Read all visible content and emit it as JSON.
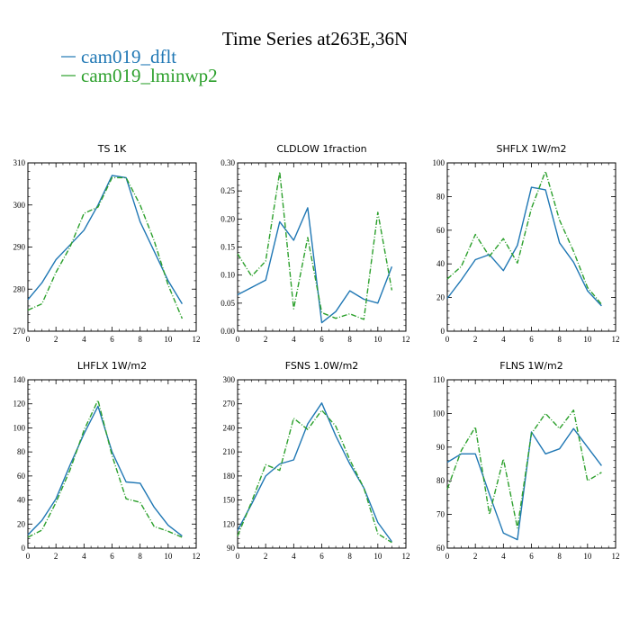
{
  "title": "Time Series at263E,36N",
  "legend": [
    {
      "label": "cam019_dflt",
      "color": "#1f77b4"
    },
    {
      "label": "cam019_lminwp2",
      "color": "#2ca02c"
    }
  ],
  "chart_data": [
    {
      "type": "line",
      "title": "TS  1K",
      "x": [
        0,
        1,
        2,
        3,
        4,
        5,
        6,
        7,
        8,
        9,
        10,
        11
      ],
      "xlim": [
        0,
        12
      ],
      "xticks": [
        0,
        2,
        4,
        6,
        8,
        10,
        12
      ],
      "ylim": [
        270,
        310
      ],
      "yticks": [
        270,
        280,
        290,
        300,
        310
      ],
      "series": [
        {
          "name": "cam019_dflt",
          "values": [
            277.5,
            281.5,
            287,
            290.5,
            294,
            300,
            307,
            306.5,
            296,
            289,
            282,
            276.5
          ]
        },
        {
          "name": "cam019_lminwp2",
          "values": [
            275,
            276.5,
            284,
            290,
            298,
            299.5,
            306.5,
            306.5,
            300,
            291.5,
            281,
            273
          ]
        }
      ]
    },
    {
      "type": "line",
      "title": "CLDLOW  1fraction",
      "x": [
        0,
        1,
        2,
        3,
        4,
        5,
        6,
        7,
        8,
        9,
        10,
        11
      ],
      "xlim": [
        0,
        12
      ],
      "xticks": [
        0,
        2,
        4,
        6,
        8,
        10,
        12
      ],
      "ylim": [
        0,
        0.3
      ],
      "yticks": [
        "0.00",
        "0.05",
        "0.10",
        "0.15",
        "0.20",
        "0.25",
        "0.30"
      ],
      "series": [
        {
          "name": "cam019_dflt",
          "values": [
            0.065,
            0.078,
            0.091,
            0.195,
            0.162,
            0.22,
            0.015,
            0.035,
            0.072,
            0.057,
            0.05,
            0.115
          ]
        },
        {
          "name": "cam019_lminwp2",
          "values": [
            0.138,
            0.098,
            0.125,
            0.284,
            0.04,
            0.167,
            0.033,
            0.023,
            0.031,
            0.021,
            0.212,
            0.073
          ]
        }
      ]
    },
    {
      "type": "line",
      "title": "SHFLX  1W/m2",
      "x": [
        0,
        1,
        2,
        3,
        4,
        5,
        6,
        7,
        8,
        9,
        10,
        11
      ],
      "xlim": [
        0,
        12
      ],
      "xticks": [
        0,
        2,
        4,
        6,
        8,
        10,
        12
      ],
      "ylim": [
        0,
        100
      ],
      "yticks": [
        0,
        20,
        40,
        60,
        80,
        100
      ],
      "series": [
        {
          "name": "cam019_dflt",
          "values": [
            19.5,
            30.5,
            42.5,
            45.5,
            36,
            51,
            85.5,
            84,
            52.5,
            41,
            24,
            15
          ]
        },
        {
          "name": "cam019_lminwp2",
          "values": [
            31,
            38.5,
            57.5,
            44.5,
            55,
            40.5,
            73,
            95,
            66,
            47.5,
            26,
            16
          ]
        }
      ]
    },
    {
      "type": "line",
      "title": "LHFLX  1W/m2",
      "x": [
        0,
        1,
        2,
        3,
        4,
        5,
        6,
        7,
        8,
        9,
        10,
        11
      ],
      "xlim": [
        0,
        12
      ],
      "xticks": [
        0,
        2,
        4,
        6,
        8,
        10,
        12
      ],
      "ylim": [
        0,
        140
      ],
      "yticks": [
        0,
        20,
        40,
        60,
        80,
        100,
        120,
        140
      ],
      "series": [
        {
          "name": "cam019_dflt",
          "values": [
            11,
            23,
            41,
            69,
            95,
            118,
            80,
            55,
            54,
            34,
            19,
            10
          ]
        },
        {
          "name": "cam019_lminwp2",
          "values": [
            9,
            15,
            38,
            65,
            98,
            123,
            77,
            41,
            38,
            18,
            14,
            9
          ]
        }
      ]
    },
    {
      "type": "line",
      "title": "FSNS  1.0W/m2",
      "x": [
        0,
        1,
        2,
        3,
        4,
        5,
        6,
        7,
        8,
        9,
        10,
        11
      ],
      "xlim": [
        0,
        12
      ],
      "xticks": [
        0,
        2,
        4,
        6,
        8,
        10,
        12
      ],
      "ylim": [
        90,
        300
      ],
      "yticks": [
        90,
        120,
        150,
        180,
        210,
        240,
        270,
        300
      ],
      "series": [
        {
          "name": "cam019_dflt",
          "values": [
            112,
            145,
            180,
            195,
            200,
            245,
            271,
            230,
            195,
            165,
            122,
            98
          ]
        },
        {
          "name": "cam019_lminwp2",
          "values": [
            105,
            148,
            194,
            187,
            252,
            238,
            262,
            242,
            200,
            165,
            108,
            97
          ]
        }
      ]
    },
    {
      "type": "line",
      "title": "FLNS  1W/m2",
      "x": [
        0,
        1,
        2,
        3,
        4,
        5,
        6,
        7,
        8,
        9,
        10,
        11
      ],
      "xlim": [
        0,
        12
      ],
      "xticks": [
        0,
        2,
        4,
        6,
        8,
        10,
        12
      ],
      "ylim": [
        60,
        110
      ],
      "yticks": [
        60,
        70,
        80,
        90,
        100,
        110
      ],
      "series": [
        {
          "name": "cam019_dflt",
          "values": [
            85.5,
            88,
            88,
            76,
            64.5,
            62.5,
            94.5,
            88,
            89.5,
            95.5,
            90,
            84.5
          ]
        },
        {
          "name": "cam019_lminwp2",
          "values": [
            77.5,
            89,
            96,
            70,
            86.5,
            66,
            94,
            100,
            95.5,
            101,
            80,
            82.5
          ]
        }
      ]
    }
  ]
}
